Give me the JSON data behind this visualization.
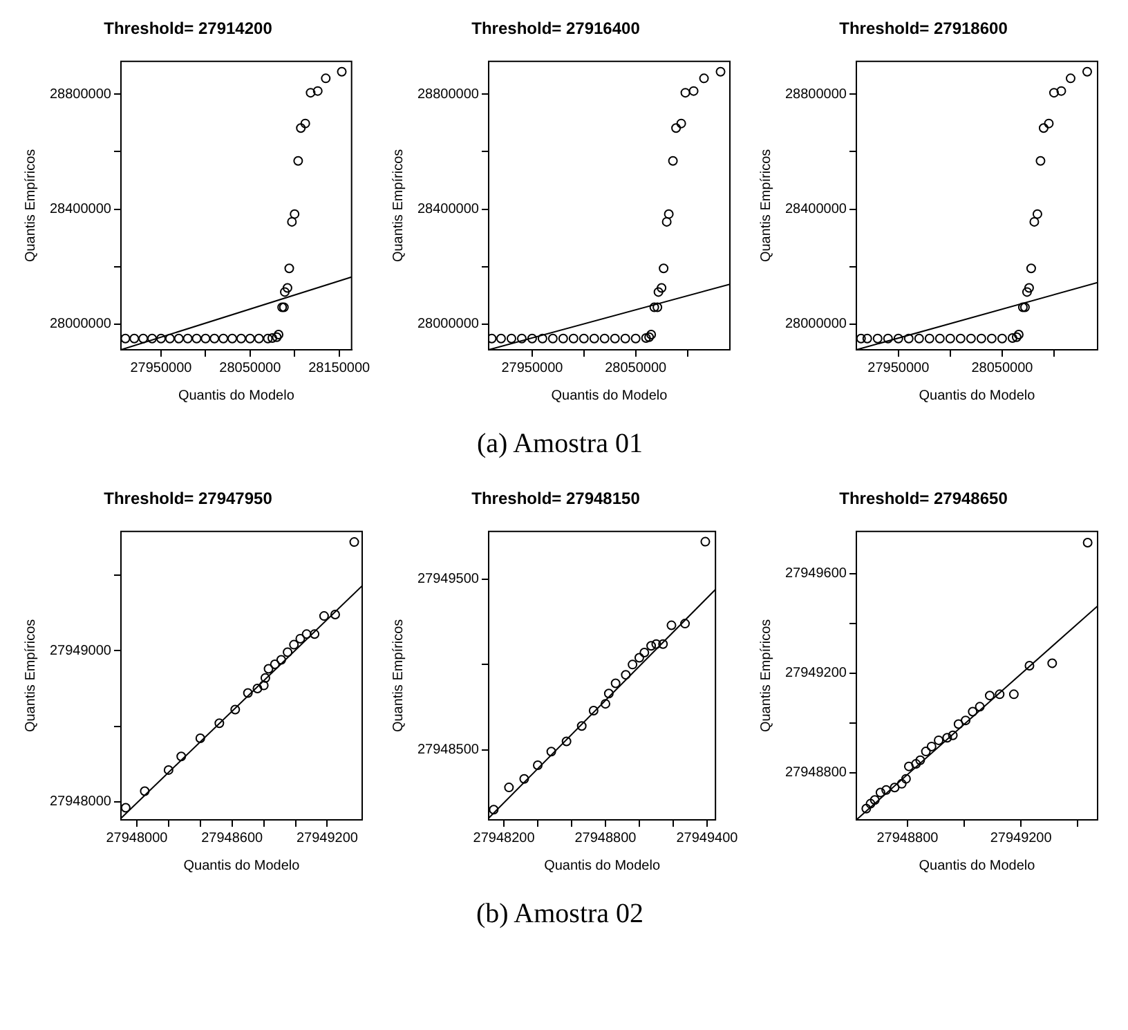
{
  "chart_data": [
    {
      "type": "scatter",
      "title": "Threshold= 27914200",
      "xlabel": "Quantis do Modelo",
      "ylabel": "Quantis Empíricos",
      "xlim": [
        27905000,
        28164000
      ],
      "ylim": [
        27911000,
        28914000
      ],
      "xticks": [
        27950000,
        {
          "value": 28000000,
          "label": null
        },
        28050000,
        {
          "value": 28100000,
          "label": null
        },
        28150000
      ],
      "yticks": [
        28000000,
        {
          "value": 28200000,
          "label": null
        },
        28400000,
        {
          "value": 28600000,
          "label": null
        },
        28800000
      ],
      "series": [
        {
          "marker": "circle",
          "color": "#000000",
          "x": [
            27910000,
            27920000,
            27930000,
            27940000,
            27950000,
            27960000,
            27970000,
            27980000,
            27990000,
            28000000,
            28010000,
            28020000,
            28030000,
            28040000,
            28050000,
            28060000,
            28070000,
            28075000,
            28080000,
            28082000,
            28086000,
            28088000,
            28089000,
            28092000,
            28094000,
            28097000,
            28100000,
            28104000,
            28107000,
            28112000,
            28118000,
            28126000,
            28135000,
            28153000
          ],
          "values": [
            27950000,
            27950000,
            27950000,
            27950000,
            27950000,
            27950000,
            27950000,
            27950000,
            27950000,
            27950000,
            27950000,
            27950000,
            27950000,
            27950000,
            27950000,
            27950000,
            27950000,
            27952000,
            27955000,
            27964000,
            28059000,
            28059000,
            28112000,
            28126000,
            28194000,
            28356000,
            28383000,
            28568000,
            28682000,
            28698000,
            28805000,
            28811000,
            28855000,
            28878000
          ]
        },
        {
          "type": "line",
          "marker": "none",
          "color": "#000000",
          "x": [
            27905000,
            28164000
          ],
          "values": [
            27911000,
            28164000
          ]
        }
      ]
    },
    {
      "type": "scatter",
      "title": "Threshold= 27916400",
      "xlabel": "Quantis do Modelo",
      "ylabel": "Quantis Empíricos",
      "xlim": [
        27908000,
        28141000
      ],
      "ylim": [
        27911000,
        28914000
      ],
      "xticks": [
        27950000,
        {
          "value": 28000000,
          "label": null
        },
        28050000,
        {
          "value": 28100000,
          "label": null
        }
      ],
      "yticks": [
        28000000,
        {
          "value": 28200000,
          "label": null
        },
        28400000,
        {
          "value": 28600000,
          "label": null
        },
        28800000
      ],
      "annotations": [
        "(a)  Amostra 01"
      ],
      "series": [
        {
          "marker": "circle",
          "color": "#000000",
          "x": [
            27911000,
            27920000,
            27930000,
            27940000,
            27950000,
            27960000,
            27970000,
            27980000,
            27990000,
            28000000,
            28010000,
            28020000,
            28030000,
            28040000,
            28050000,
            28060000,
            28063000,
            28065000,
            28068000,
            28071000,
            28072000,
            28075000,
            28077000,
            28080000,
            28082000,
            28086000,
            28089000,
            28094000,
            28098000,
            28106000,
            28116000,
            28132000
          ],
          "values": [
            27950000,
            27950000,
            27950000,
            27950000,
            27950000,
            27950000,
            27950000,
            27950000,
            27950000,
            27950000,
            27950000,
            27950000,
            27950000,
            27950000,
            27950000,
            27952000,
            27955000,
            27964000,
            28059000,
            28059000,
            28112000,
            28126000,
            28194000,
            28356000,
            28383000,
            28568000,
            28682000,
            28698000,
            28805000,
            28811000,
            28855000,
            28878000
          ]
        },
        {
          "type": "line",
          "marker": "none",
          "color": "#000000",
          "x": [
            27908000,
            28141000
          ],
          "values": [
            27911000,
            28139000
          ]
        }
      ]
    },
    {
      "type": "scatter",
      "title": "Threshold= 27918600",
      "xlabel": "Quantis do Modelo",
      "ylabel": "Quantis Empíricos",
      "xlim": [
        27909500,
        28142000
      ],
      "ylim": [
        27911000,
        28914000
      ],
      "xticks": [
        27950000,
        {
          "value": 28000000,
          "label": null
        },
        28050000,
        {
          "value": 28100000,
          "label": null
        }
      ],
      "yticks": [
        28000000,
        {
          "value": 28200000,
          "label": null
        },
        28400000,
        {
          "value": 28600000,
          "label": null
        },
        28800000
      ],
      "series": [
        {
          "marker": "circle",
          "color": "#000000",
          "x": [
            27914000,
            27920000,
            27930000,
            27940000,
            27950000,
            27960000,
            27970000,
            27980000,
            27990000,
            28000000,
            28010000,
            28020000,
            28030000,
            28040000,
            28050000,
            28060000,
            28064000,
            28066000,
            28070000,
            28072000,
            28074000,
            28076000,
            28078000,
            28081000,
            28084000,
            28087000,
            28090000,
            28095000,
            28100000,
            28107000,
            28116000,
            28132000
          ],
          "values": [
            27950000,
            27950000,
            27950000,
            27950000,
            27950000,
            27950000,
            27950000,
            27950000,
            27950000,
            27950000,
            27950000,
            27950000,
            27950000,
            27950000,
            27950000,
            27952000,
            27955000,
            27964000,
            28059000,
            28059000,
            28112000,
            28126000,
            28194000,
            28356000,
            28383000,
            28568000,
            28682000,
            28698000,
            28805000,
            28811000,
            28855000,
            28878000
          ]
        },
        {
          "type": "line",
          "marker": "none",
          "color": "#000000",
          "x": [
            27909500,
            28142000
          ],
          "values": [
            27911000,
            28145000
          ]
        }
      ]
    },
    {
      "type": "scatter",
      "title": "Threshold= 27947950",
      "xlabel": "Quantis do Modelo",
      "ylabel": "Quantis Empíricos",
      "xlim": [
        27947900,
        27949420
      ],
      "ylim": [
        27947880,
        27949790
      ],
      "xticks": [
        27948000,
        {
          "value": 27948200,
          "label": null
        },
        {
          "value": 27948400,
          "label": null
        },
        27948600,
        {
          "value": 27948800,
          "label": null
        },
        {
          "value": 27949000,
          "label": null
        },
        27949200
      ],
      "yticks": [
        27948000,
        {
          "value": 27948500,
          "label": null
        },
        27949000,
        {
          "value": 27949500,
          "label": null
        }
      ],
      "series": [
        {
          "marker": "circle",
          "color": "#000000",
          "x": [
            27947930,
            27948050,
            27948200,
            27948280,
            27948400,
            27948520,
            27948620,
            27948700,
            27948760,
            27948800,
            27948810,
            27948830,
            27948870,
            27948910,
            27948950,
            27948990,
            27949030,
            27949070,
            27949120,
            27949180,
            27949250,
            27949370
          ],
          "values": [
            27947960,
            27948070,
            27948210,
            27948300,
            27948420,
            27948520,
            27948610,
            27948720,
            27948750,
            27948770,
            27948820,
            27948880,
            27948910,
            27948940,
            27948990,
            27949040,
            27949080,
            27949110,
            27949110,
            27949230,
            27949240,
            27949720
          ]
        },
        {
          "type": "line",
          "marker": "none",
          "color": "#000000",
          "x": [
            27947900,
            27949420
          ],
          "values": [
            27947890,
            27949430
          ]
        }
      ]
    },
    {
      "type": "scatter",
      "title": "Threshold= 27948150",
      "xlabel": "Quantis do Modelo",
      "ylabel": "Quantis Empíricos",
      "xlim": [
        27948110,
        27949450
      ],
      "ylim": [
        27948090,
        27949780
      ],
      "xticks": [
        27948200,
        {
          "value": 27948400,
          "label": null
        },
        {
          "value": 27948600,
          "label": null
        },
        27948800,
        {
          "value": 27949000,
          "label": null
        },
        {
          "value": 27949200,
          "label": null
        },
        27949400
      ],
      "yticks": [
        27948500,
        {
          "value": 27949000,
          "label": null
        },
        27949500
      ],
      "annotations": [
        "(b)  Amostra 02"
      ],
      "series": [
        {
          "marker": "circle",
          "color": "#000000",
          "x": [
            27948140,
            27948230,
            27948320,
            27948400,
            27948480,
            27948570,
            27948660,
            27948730,
            27948800,
            27948820,
            27948860,
            27948920,
            27948960,
            27949000,
            27949030,
            27949070,
            27949100,
            27949140,
            27949190,
            27949270,
            27949390
          ],
          "values": [
            27948150,
            27948280,
            27948330,
            27948410,
            27948490,
            27948550,
            27948640,
            27948730,
            27948770,
            27948830,
            27948890,
            27948940,
            27949000,
            27949040,
            27949070,
            27949110,
            27949120,
            27949120,
            27949230,
            27949240,
            27949720
          ]
        },
        {
          "type": "line",
          "marker": "none",
          "color": "#000000",
          "x": [
            27948110,
            27949450
          ],
          "values": [
            27948100,
            27949440
          ]
        }
      ]
    },
    {
      "type": "scatter",
      "title": "Threshold= 27948650",
      "xlabel": "Quantis do Modelo",
      "ylabel": "Quantis Empíricos",
      "xlim": [
        27948620,
        27949470
      ],
      "ylim": [
        27948610,
        27949770
      ],
      "xticks": [
        27948800,
        {
          "value": 27949000,
          "label": null
        },
        27949200,
        {
          "value": 27949400,
          "label": null
        }
      ],
      "yticks": [
        27948800,
        {
          "value": 27949000,
          "label": null
        },
        27949200,
        {
          "value": 27949400,
          "label": null
        },
        27949600
      ],
      "series": [
        {
          "marker": "circle",
          "color": "#000000",
          "x": [
            27948655,
            27948670,
            27948685,
            27948705,
            27948725,
            27948755,
            27948780,
            27948795,
            27948805,
            27948830,
            27948845,
            27948865,
            27948885,
            27948910,
            27948940,
            27948960,
            27948980,
            27949005,
            27949030,
            27949055,
            27949090,
            27949125,
            27949175,
            27949230,
            27949310,
            27949435
          ],
          "values": [
            27948655,
            27948675,
            27948690,
            27948720,
            27948730,
            27948740,
            27948755,
            27948775,
            27948825,
            27948835,
            27948850,
            27948885,
            27948905,
            27948930,
            27948940,
            27948950,
            27948995,
            27949010,
            27949045,
            27949065,
            27949110,
            27949115,
            27949115,
            27949230,
            27949240,
            27949725
          ]
        },
        {
          "type": "line",
          "marker": "none",
          "color": "#000000",
          "x": [
            27948620,
            27949470
          ],
          "values": [
            27948610,
            27949470
          ]
        }
      ]
    }
  ]
}
